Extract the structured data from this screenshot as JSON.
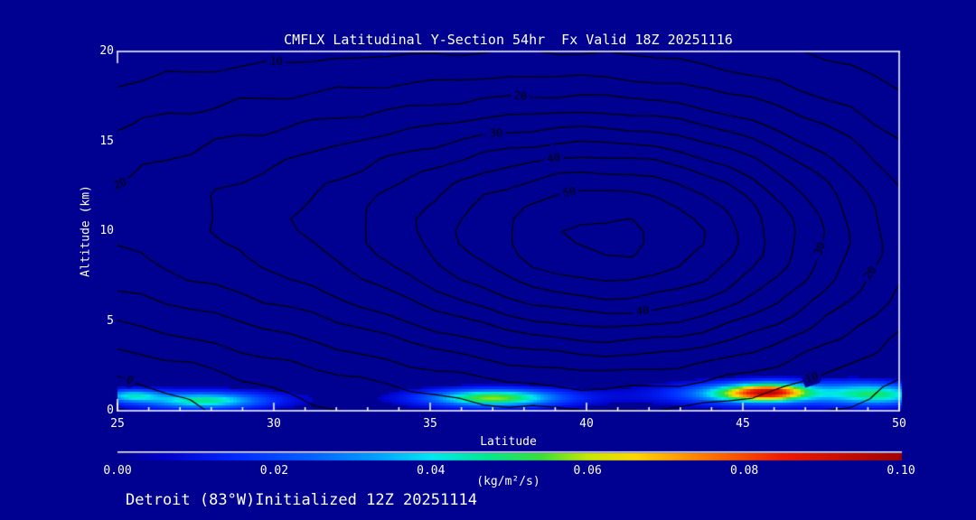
{
  "page": {
    "background": "#000091",
    "frame_color": "#ffffff",
    "text_color": "#ffffff"
  },
  "chart_data": {
    "type": "contour",
    "title": "CMFLX Latitudinal Y-Section 54hr  Fx Valid 18Z 20251116",
    "footer": "Detroit (83°W)Initialized 12Z 20251114",
    "x_axis": {
      "label": "Latitude",
      "min": 25,
      "max": 50,
      "major_ticks": [
        25,
        30,
        35,
        40,
        45,
        50
      ],
      "minor_tick_step": 1
    },
    "y_axis": {
      "label": "Altitude (km)",
      "min": 0,
      "max": 20,
      "major_ticks": [
        0,
        5,
        10,
        15,
        20
      ]
    },
    "contours": {
      "line_color": "#000000",
      "interval": 5,
      "levels": [
        0,
        5,
        10,
        15,
        20,
        25,
        30,
        35,
        40,
        45,
        50,
        55
      ],
      "labeled_levels": [
        0,
        10,
        20,
        30,
        40,
        50
      ],
      "labels": [
        {
          "value": 0,
          "lat": 25.5,
          "alt": 2.55
        },
        {
          "value": 20,
          "lat": 25.9,
          "alt": 11.1
        },
        {
          "value": 10,
          "lat": 30.3,
          "alt": 18.7
        },
        {
          "value": 20,
          "lat": 37.6,
          "alt": 18.5
        },
        {
          "value": 30,
          "lat": 37.0,
          "alt": 16.6
        },
        {
          "value": 40,
          "lat": 39.1,
          "alt": 12.5
        },
        {
          "value": 50,
          "lat": 39.8,
          "alt": 10.0
        },
        {
          "value": 40,
          "lat": 41.8,
          "alt": 5.8
        },
        {
          "value": 30,
          "lat": 47.6,
          "alt": 8.6
        },
        {
          "value": 20,
          "lat": 48.7,
          "alt": 7.8
        },
        {
          "value": 10,
          "lat": 47.0,
          "alt": 1.15
        }
      ],
      "field_model_bumps": [
        {
          "amp": 41,
          "lat": 41.8,
          "alt": 9.4,
          "sig_lat": 5.4,
          "sig_alt": 5.0
        },
        {
          "amp": 25,
          "lat": 31.5,
          "alt": 11.0,
          "sig_lat": 10.0,
          "sig_alt": 6.0
        },
        {
          "amp": -7,
          "lat": 24.0,
          "alt": 0.5,
          "sig_lat": 4.0,
          "sig_alt": 3.0
        }
      ]
    },
    "fill": {
      "units": "(kg/m²/s)",
      "min": 0.0,
      "max": 0.1,
      "threshold": 0.006,
      "blobs": [
        {
          "lat": 25.45,
          "alt": 0.85,
          "amp": 0.03,
          "sig_lat": 0.65,
          "sig_alt": 0.24
        },
        {
          "lat": 27.6,
          "alt": 0.6,
          "amp": 0.022,
          "sig_lat": 2.2,
          "sig_alt": 0.42
        },
        {
          "lat": 27.8,
          "alt": 0.55,
          "amp": 0.026,
          "sig_lat": 1.1,
          "sig_alt": 0.28
        },
        {
          "lat": 37.1,
          "alt": 0.7,
          "amp": 0.024,
          "sig_lat": 2.1,
          "sig_alt": 0.42
        },
        {
          "lat": 37.0,
          "alt": 0.72,
          "amp": 0.034,
          "sig_lat": 1.25,
          "sig_alt": 0.3
        },
        {
          "lat": 45.9,
          "alt": 0.95,
          "amp": 0.03,
          "sig_lat": 2.5,
          "sig_alt": 0.5
        },
        {
          "lat": 44.95,
          "alt": 0.95,
          "amp": 0.026,
          "sig_lat": 1.0,
          "sig_alt": 0.33
        },
        {
          "lat": 45.95,
          "alt": 1.05,
          "amp": 0.05,
          "sig_lat": 0.8,
          "sig_alt": 0.33
        },
        {
          "lat": 48.85,
          "alt": 0.95,
          "amp": 0.026,
          "sig_lat": 0.95,
          "sig_alt": 0.45
        },
        {
          "lat": 49.9,
          "alt": 0.85,
          "amp": 0.02,
          "sig_lat": 0.8,
          "sig_alt": 0.4
        }
      ]
    },
    "colorbar": {
      "tick_labels": [
        "0.00",
        "0.02",
        "0.04",
        "0.06",
        "0.08",
        "0.10"
      ],
      "stops": [
        [
          0.0,
          "#000091"
        ],
        [
          0.06,
          "#0000c8"
        ],
        [
          0.15,
          "#0028ff"
        ],
        [
          0.25,
          "#0064ff"
        ],
        [
          0.33,
          "#00a0ff"
        ],
        [
          0.4,
          "#00e8f0"
        ],
        [
          0.47,
          "#00e890"
        ],
        [
          0.54,
          "#38e038"
        ],
        [
          0.6,
          "#c8e800"
        ],
        [
          0.66,
          "#ffd800"
        ],
        [
          0.75,
          "#ff7800"
        ],
        [
          0.85,
          "#f01800"
        ],
        [
          1.0,
          "#a00000"
        ]
      ]
    }
  }
}
